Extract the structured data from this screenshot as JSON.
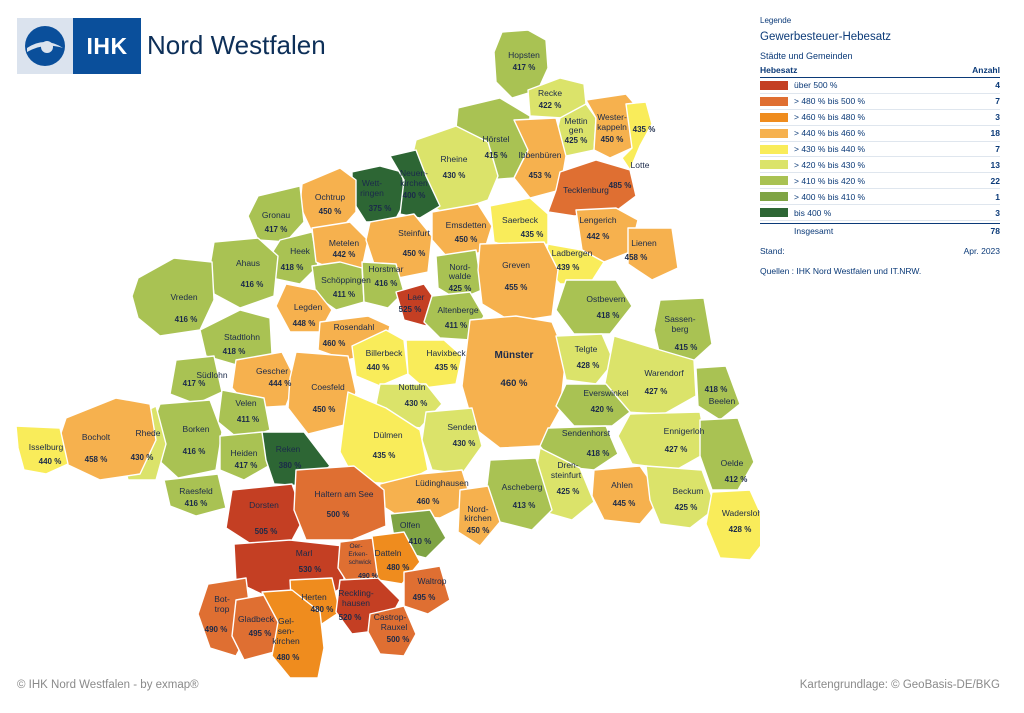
{
  "brand": {
    "short": "IHK",
    "name": "Nord Westfalen",
    "logo_icon": "ihk-swirl-icon"
  },
  "legend": {
    "caption": "Legende",
    "title": "Gewerbesteuer-Hebesatz",
    "subtitle": "Städte und Gemeinden",
    "col_rate": "Hebesatz",
    "col_count": "Anzahl",
    "classes": [
      {
        "label": "über  500 %",
        "count": "4",
        "color": "#c43f23"
      },
      {
        "label": "> 480 % bis 500 %",
        "count": "7",
        "color": "#df6f32"
      },
      {
        "label": "> 460 % bis 480 %",
        "count": "3",
        "color": "#ef8c1e"
      },
      {
        "label": "> 440 % bis 460 %",
        "count": "18",
        "color": "#f6b14e"
      },
      {
        "label": "> 430 % bis 440 %",
        "count": "7",
        "color": "#f9ec5a"
      },
      {
        "label": "> 420 % bis 430 %",
        "count": "13",
        "color": "#dbe36a"
      },
      {
        "label": "> 410 % bis 420 %",
        "count": "22",
        "color": "#a9c253"
      },
      {
        "label": "> 400 % bis 410 %",
        "count": "1",
        "color": "#7fa444"
      },
      {
        "label": "bis 400 %",
        "count": "3",
        "color": "#2d6634"
      }
    ],
    "total_label": "Insgesamt",
    "total_count": "78",
    "stand_label": "Stand:",
    "stand_value": "Apr. 2023",
    "sources": "Quellen : IHK Nord  Westfalen  und  IT.NRW."
  },
  "municipalities": [
    {
      "name": "Hopsten",
      "value": "417 %"
    },
    {
      "name": "Recke",
      "value": "422 %"
    },
    {
      "name": "Mettin-gen",
      "value": "425 %"
    },
    {
      "name": "Wester-kappeln",
      "value": "450 %"
    },
    {
      "name": "Hörstel",
      "value": "415 %"
    },
    {
      "name": "Ibbenbüren",
      "value": "453 %"
    },
    {
      "name": "Rheine",
      "value": "430 %"
    },
    {
      "name": "Lotte",
      "value": "435 %"
    },
    {
      "name": "Tecklenburg",
      "value": "485 %"
    },
    {
      "name": "Wett-ringen",
      "value": "375 %"
    },
    {
      "name": "Neuen-kirchen",
      "value": "400 %"
    },
    {
      "name": "Ochtrup",
      "value": "450 %"
    },
    {
      "name": "Gronau",
      "value": "417 %"
    },
    {
      "name": "Heek",
      "value": "418 %"
    },
    {
      "name": "Metelen",
      "value": "442 %"
    },
    {
      "name": "Steinfurt",
      "value": "450 %"
    },
    {
      "name": "Emsdetten",
      "value": "450 %"
    },
    {
      "name": "Saerbeck",
      "value": "435 %"
    },
    {
      "name": "Lengerich",
      "value": "442 %"
    },
    {
      "name": "Lienen",
      "value": "458 %"
    },
    {
      "name": "Ladbergen",
      "value": "439 %"
    },
    {
      "name": "Ahaus",
      "value": "416 %"
    },
    {
      "name": "Schöppingen",
      "value": "411 %"
    },
    {
      "name": "Horstmar",
      "value": "416 %"
    },
    {
      "name": "Nord-walde",
      "value": "425 %"
    },
    {
      "name": "Greven",
      "value": "455 %"
    },
    {
      "name": "Vreden",
      "value": "416 %"
    },
    {
      "name": "Legden",
      "value": "448 %"
    },
    {
      "name": "Laer",
      "value": "525 %"
    },
    {
      "name": "Altenberge",
      "value": "411 %"
    },
    {
      "name": "Ostbevern",
      "value": "418 %"
    },
    {
      "name": "Sassen-berg",
      "value": "415 %"
    },
    {
      "name": "Stadtlohn",
      "value": "418 %"
    },
    {
      "name": "Rosendahl",
      "value": "460 %"
    },
    {
      "name": "Billerbeck",
      "value": "440 %"
    },
    {
      "name": "Havixbeck",
      "value": "435 %"
    },
    {
      "name": "Münster",
      "value": "460 %"
    },
    {
      "name": "Telgte",
      "value": "428 %"
    },
    {
      "name": "Warendorf",
      "value": "427 %"
    },
    {
      "name": "Südlohn",
      "value": "417 %"
    },
    {
      "name": "Gescher",
      "value": "444 %"
    },
    {
      "name": "Coesfeld",
      "value": "450 %"
    },
    {
      "name": "Nottuln",
      "value": "430 %"
    },
    {
      "name": "Everswinkel",
      "value": "420 %"
    },
    {
      "name": "Beelen",
      "value": "418 %"
    },
    {
      "name": "Velen",
      "value": "411 %"
    },
    {
      "name": "Borken",
      "value": "416 %"
    },
    {
      "name": "Rhede",
      "value": "430 %"
    },
    {
      "name": "Bocholt",
      "value": "458 %"
    },
    {
      "name": "Isselburg",
      "value": "440 %"
    },
    {
      "name": "Senden",
      "value": "430 %"
    },
    {
      "name": "Dülmen",
      "value": "435 %"
    },
    {
      "name": "Sendenhorst",
      "value": "418 %"
    },
    {
      "name": "Ennigerloh",
      "value": "427 %"
    },
    {
      "name": "Heiden",
      "value": "417 %"
    },
    {
      "name": "Reken",
      "value": "380 %"
    },
    {
      "name": "Oelde",
      "value": "412 %"
    },
    {
      "name": "Raesfeld",
      "value": "416 %"
    },
    {
      "name": "Lüdinghausen",
      "value": "460 %"
    },
    {
      "name": "Drен-steinfurt",
      "value": "425 %"
    },
    {
      "name": "Ahlen",
      "value": "445 %"
    },
    {
      "name": "Beckum",
      "value": "425 %"
    },
    {
      "name": "Ascheberg",
      "value": "413 %"
    },
    {
      "name": "Dorsten",
      "value": "505 %"
    },
    {
      "name": "Haltern am See",
      "value": "500 %"
    },
    {
      "name": "Nord-kirchen",
      "value": "450 %"
    },
    {
      "name": "Wadersloh",
      "value": "428 %"
    },
    {
      "name": "Olfen",
      "value": "410 %"
    },
    {
      "name": "Marl",
      "value": "530 %"
    },
    {
      "name": "Oer-Erken-schwick",
      "value": "490 %"
    },
    {
      "name": "Datteln",
      "value": "480 %"
    },
    {
      "name": "Waltrop",
      "value": "495 %"
    },
    {
      "name": "Bot-trop",
      "value": "490 %"
    },
    {
      "name": "Herten",
      "value": "480 %"
    },
    {
      "name": "Reckling-hausen",
      "value": "520 %"
    },
    {
      "name": "Gladbeck",
      "value": "495 %"
    },
    {
      "name": "Gel-sen-kirchen",
      "value": "480 %"
    },
    {
      "name": "Castrop-Rauxel",
      "value": "500 %"
    }
  ],
  "footer": {
    "left": "© IHK Nord Westfalen - by exmap®",
    "right": "Kartengrundlage: © GeoBasis-DE/BKG"
  }
}
